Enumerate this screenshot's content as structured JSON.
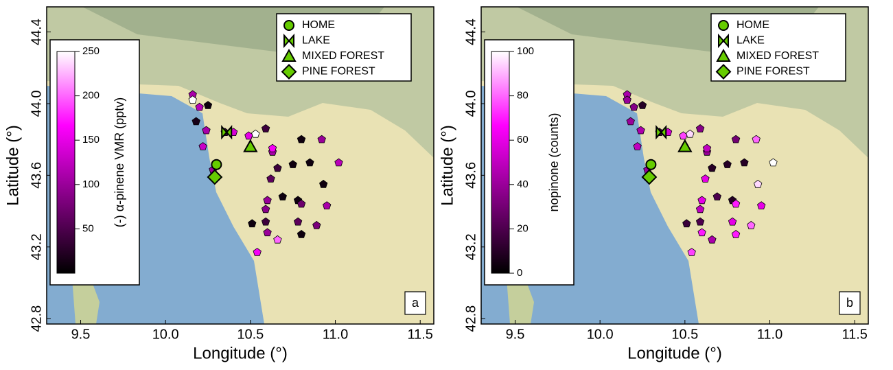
{
  "chart_data": [
    {
      "type": "scatter",
      "panel_label": "a",
      "x_label": "Longitude (°)",
      "y_label": "Latitude (°)",
      "colorbar_label": "(-) α-pinene VMR (pptv)",
      "xlim": [
        9.3,
        11.58
      ],
      "ylim": [
        42.77,
        44.54
      ],
      "xticks": [
        9.5,
        {
          "value": 10,
          "label": "10.0"
        },
        10.5,
        {
          "value": 11,
          "label": "11.0"
        },
        11.5
      ],
      "yticks": [
        42.8,
        43.2,
        43.6,
        {
          "value": 44,
          "label": "44.0"
        },
        44.4
      ],
      "clim": [
        0,
        250
      ],
      "cticks": [
        50,
        100,
        150,
        200,
        250
      ],
      "colormap": [
        "#000000",
        "#800080",
        "#ff00ff",
        "#ffffff"
      ],
      "x": [
        10.16,
        10.16,
        10.2,
        10.25,
        10.18,
        10.24,
        10.22,
        10.35,
        10.4,
        10.49,
        10.53,
        10.59,
        10.63,
        10.63,
        10.8,
        10.92,
        10.66,
        10.75,
        10.85,
        11.02,
        10.62,
        10.93,
        10.69,
        10.6,
        10.78,
        10.8,
        10.95,
        10.59,
        10.51,
        10.59,
        10.78,
        10.89,
        10.8,
        10.6,
        10.66,
        10.54,
        10.28
      ],
      "y": [
        44.05,
        44.02,
        43.98,
        43.99,
        43.9,
        43.85,
        43.76,
        43.84,
        43.84,
        43.82,
        43.83,
        43.86,
        43.73,
        43.75,
        43.8,
        43.8,
        43.64,
        43.66,
        43.67,
        43.67,
        43.58,
        43.55,
        43.48,
        43.46,
        43.46,
        43.44,
        43.43,
        43.41,
        43.33,
        43.34,
        43.34,
        43.32,
        43.27,
        43.28,
        43.24,
        43.17,
        43.63
      ],
      "values": [
        110,
        250,
        120,
        10,
        15,
        110,
        130,
        30,
        140,
        150,
        250,
        40,
        110,
        160,
        10,
        100,
        40,
        10,
        10,
        120,
        60,
        10,
        10,
        100,
        10,
        70,
        110,
        90,
        10,
        40,
        60,
        80,
        10,
        100,
        200,
        160,
        100
      ],
      "landmarks": [
        {
          "name": "HOME",
          "x": 10.3,
          "y": 43.66
        },
        {
          "name": "LAKE",
          "x": 10.36,
          "y": 43.84
        },
        {
          "name": "MIXED FOREST",
          "x": 10.5,
          "y": 43.76
        },
        {
          "name": "PINE FOREST",
          "x": 10.29,
          "y": 43.59
        }
      ]
    },
    {
      "type": "scatter",
      "panel_label": "b",
      "x_label": "Longitude (°)",
      "y_label": "Latitude (°)",
      "colorbar_label": "nopinone (counts)",
      "xlim": [
        9.3,
        11.58
      ],
      "ylim": [
        42.77,
        44.54
      ],
      "xticks": [
        9.5,
        {
          "value": 10,
          "label": "10.0"
        },
        10.5,
        {
          "value": 11,
          "label": "11.0"
        },
        11.5
      ],
      "yticks": [
        42.8,
        43.2,
        43.6,
        {
          "value": 44,
          "label": "44.0"
        },
        44.4
      ],
      "clim": [
        0,
        100
      ],
      "cticks": [
        0,
        20,
        40,
        60,
        80,
        100
      ],
      "colormap": [
        "#000000",
        "#800080",
        "#ff00ff",
        "#ffffff"
      ],
      "x": [
        10.16,
        10.16,
        10.2,
        10.25,
        10.18,
        10.24,
        10.22,
        10.35,
        10.4,
        10.49,
        10.53,
        10.59,
        10.63,
        10.63,
        10.8,
        10.92,
        10.66,
        10.75,
        10.85,
        11.02,
        10.62,
        10.93,
        10.69,
        10.6,
        10.78,
        10.8,
        10.95,
        10.59,
        10.51,
        10.59,
        10.78,
        10.89,
        10.8,
        10.6,
        10.66,
        10.54,
        10.28
      ],
      "y": [
        44.05,
        44.02,
        43.98,
        43.99,
        43.9,
        43.85,
        43.76,
        43.84,
        43.84,
        43.82,
        43.83,
        43.86,
        43.73,
        43.75,
        43.8,
        43.8,
        43.64,
        43.66,
        43.67,
        43.67,
        43.58,
        43.55,
        43.48,
        43.46,
        43.46,
        43.44,
        43.43,
        43.41,
        43.33,
        43.34,
        43.34,
        43.32,
        43.27,
        43.28,
        43.24,
        43.17,
        43.63
      ],
      "values": [
        45,
        40,
        35,
        10,
        40,
        45,
        50,
        15,
        55,
        75,
        95,
        35,
        40,
        50,
        30,
        80,
        10,
        10,
        10,
        100,
        60,
        95,
        20,
        60,
        10,
        70,
        60,
        50,
        15,
        20,
        60,
        80,
        70,
        70,
        45,
        75,
        40
      ],
      "landmarks": [
        {
          "name": "HOME",
          "x": 10.3,
          "y": 43.66
        },
        {
          "name": "LAKE",
          "x": 10.36,
          "y": 43.84
        },
        {
          "name": "MIXED FOREST",
          "x": 10.5,
          "y": 43.76
        },
        {
          "name": "PINE FOREST",
          "x": 10.29,
          "y": 43.59
        }
      ]
    }
  ]
}
